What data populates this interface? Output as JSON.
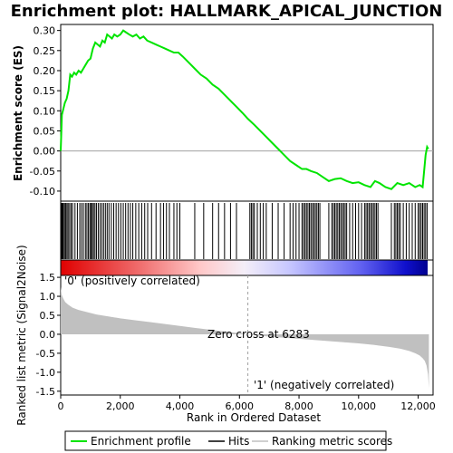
{
  "title": "Enrichment plot: HALLMARK_APICAL_JUNCTION",
  "colors": {
    "es_line": "#00e400",
    "hits": "#000000",
    "metric_fill": "#c0c0c0",
    "pos_label": "#cc0000",
    "neg_label": "#0000cc",
    "zero_line": "#a0a0a0"
  },
  "chart_data": [
    {
      "type": "line",
      "name": "enrichment-score",
      "ylabel": "Enrichment score (ES)",
      "xlim": [
        0,
        12500
      ],
      "ylim": [
        -0.125,
        0.315
      ],
      "yticks": [
        -0.1,
        -0.05,
        0.0,
        0.05,
        0.1,
        0.15,
        0.2,
        0.25,
        0.3
      ],
      "ytick_labels": [
        "-0.10",
        "-0.05",
        "0.00",
        "0.05",
        "0.10",
        "0.15",
        "0.20",
        "0.25",
        "0.30"
      ],
      "x": [
        0,
        40,
        90,
        140,
        200,
        260,
        320,
        380,
        450,
        520,
        600,
        680,
        760,
        840,
        920,
        1000,
        1080,
        1160,
        1240,
        1320,
        1400,
        1480,
        1560,
        1640,
        1720,
        1800,
        1900,
        2000,
        2100,
        2200,
        2300,
        2420,
        2540,
        2660,
        2780,
        2900,
        3050,
        3200,
        3350,
        3500,
        3650,
        3800,
        3950,
        4100,
        4300,
        4500,
        4700,
        4900,
        5100,
        5300,
        5500,
        5700,
        5900,
        6100,
        6283,
        6500,
        6700,
        6900,
        7100,
        7300,
        7500,
        7700,
        7900,
        8100,
        8250,
        8400,
        8600,
        8800,
        9000,
        9200,
        9400,
        9600,
        9800,
        10000,
        10200,
        10400,
        10550,
        10700,
        10900,
        11100,
        11300,
        11500,
        11700,
        11900,
        12050,
        12150,
        12200,
        12250,
        12300,
        12340
      ],
      "y": [
        0.0,
        0.09,
        0.105,
        0.12,
        0.13,
        0.15,
        0.19,
        0.185,
        0.195,
        0.19,
        0.2,
        0.195,
        0.205,
        0.215,
        0.225,
        0.23,
        0.255,
        0.27,
        0.265,
        0.26,
        0.275,
        0.27,
        0.29,
        0.285,
        0.28,
        0.29,
        0.285,
        0.29,
        0.3,
        0.295,
        0.29,
        0.285,
        0.29,
        0.28,
        0.285,
        0.275,
        0.27,
        0.265,
        0.26,
        0.255,
        0.25,
        0.245,
        0.245,
        0.235,
        0.22,
        0.205,
        0.19,
        0.18,
        0.165,
        0.155,
        0.14,
        0.125,
        0.11,
        0.095,
        0.08,
        0.065,
        0.05,
        0.035,
        0.02,
        0.005,
        -0.01,
        -0.025,
        -0.035,
        -0.045,
        -0.045,
        -0.05,
        -0.055,
        -0.065,
        -0.075,
        -0.07,
        -0.068,
        -0.075,
        -0.08,
        -0.078,
        -0.085,
        -0.09,
        -0.075,
        -0.08,
        -0.09,
        -0.095,
        -0.08,
        -0.085,
        -0.08,
        -0.09,
        -0.085,
        -0.09,
        -0.05,
        -0.01,
        0.01,
        0.005
      ]
    },
    {
      "type": "scatter",
      "name": "hits",
      "legend": "Hits",
      "positions": [
        30,
        60,
        90,
        130,
        170,
        210,
        250,
        300,
        350,
        400,
        480,
        560,
        640,
        700,
        760,
        830,
        880,
        930,
        980,
        1020,
        1060,
        1100,
        1150,
        1200,
        1260,
        1320,
        1380,
        1440,
        1500,
        1560,
        1620,
        1700,
        1780,
        1860,
        1940,
        2020,
        2100,
        2180,
        2260,
        2340,
        2420,
        2520,
        2620,
        2720,
        2820,
        2920,
        3050,
        3200,
        3350,
        3450,
        3550,
        3650,
        3800,
        3900,
        4000,
        4500,
        4800,
        5100,
        5300,
        5500,
        5700,
        5900,
        6350,
        6400,
        6450,
        6500,
        6600,
        6700,
        6800,
        6900,
        7100,
        7300,
        7500,
        7700,
        7800,
        7900,
        8000,
        8100,
        8150,
        8200,
        8250,
        8300,
        8350,
        8400,
        8450,
        8500,
        8550,
        8600,
        8650,
        8700,
        9000,
        9100,
        9150,
        9200,
        9250,
        9300,
        9350,
        9400,
        9450,
        9500,
        9550,
        9600,
        9700,
        9800,
        9900,
        10000,
        10100,
        10200,
        10250,
        10300,
        10350,
        10400,
        10450,
        10500,
        10550,
        10600,
        10650,
        11100,
        11200,
        11250,
        11300,
        11350,
        11400,
        11500,
        11600,
        11700,
        11800,
        11900,
        12000,
        12050,
        12100,
        12150,
        12200,
        12250,
        12300
      ]
    },
    {
      "type": "area",
      "name": "ranked-metric",
      "legend": "Ranking metric scores",
      "ylabel": "Ranked list metric (Signal2Noise)",
      "xlabel": "Rank in Ordered Dataset",
      "xlim": [
        0,
        12500
      ],
      "ylim": [
        -1.6,
        1.55
      ],
      "yticks": [
        -1.5,
        -1.0,
        -0.5,
        0.0,
        0.5,
        1.0,
        1.5
      ],
      "ytick_labels": [
        "-1.5",
        "-1.0",
        "-0.5",
        "0.0",
        "0.5",
        "1.0",
        "1.5"
      ],
      "xticks": [
        0,
        2000,
        4000,
        6000,
        8000,
        10000,
        12000
      ],
      "xtick_labels": [
        "0",
        "2,000",
        "4,000",
        "6,000",
        "8,000",
        "10,000",
        "12,000"
      ],
      "x": [
        0,
        30,
        80,
        150,
        250,
        400,
        600,
        900,
        1200,
        1600,
        2000,
        2500,
        3000,
        3500,
        4000,
        4500,
        5000,
        5500,
        6000,
        6283,
        6600,
        7000,
        7500,
        8000,
        8500,
        9000,
        9500,
        10000,
        10500,
        11000,
        11400,
        11700,
        11900,
        12050,
        12150,
        12220,
        12280,
        12330,
        12360
      ],
      "y": [
        1.25,
        1.05,
        0.95,
        0.85,
        0.78,
        0.7,
        0.64,
        0.58,
        0.52,
        0.47,
        0.42,
        0.37,
        0.32,
        0.27,
        0.22,
        0.17,
        0.12,
        0.07,
        0.03,
        0.0,
        -0.03,
        -0.06,
        -0.09,
        -0.12,
        -0.15,
        -0.18,
        -0.21,
        -0.24,
        -0.28,
        -0.33,
        -0.38,
        -0.44,
        -0.5,
        -0.56,
        -0.63,
        -0.7,
        -0.82,
        -1.05,
        -1.42
      ]
    }
  ],
  "annotations": {
    "positive": "'0' (positively correlated)",
    "negative": "'1' (negatively correlated)",
    "zero_cross": "Zero cross at 6283",
    "zero_cross_rank": 6283
  },
  "legend": {
    "items": [
      "Enrichment profile",
      "Hits",
      "Ranking metric scores"
    ]
  }
}
